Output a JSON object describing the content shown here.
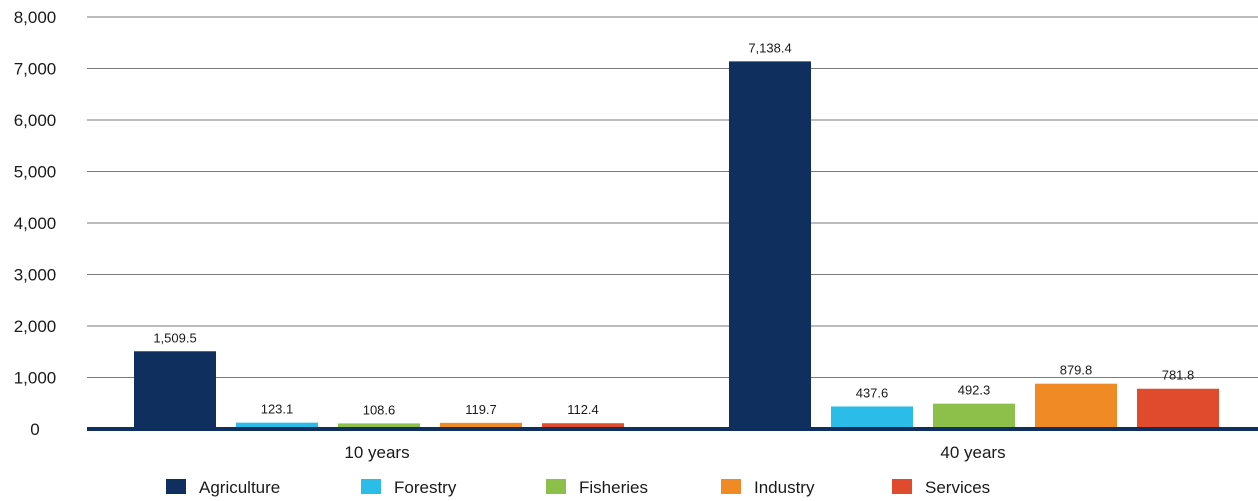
{
  "chart_data": {
    "type": "bar",
    "categories": [
      "10 years",
      "40 years"
    ],
    "series": [
      {
        "name": "Agriculture",
        "color": "#0f2f5e",
        "values": [
          1509.5,
          7138.4
        ],
        "labels": [
          "1,509.5",
          "7,138.4"
        ]
      },
      {
        "name": "Forestry",
        "color": "#2bbde8",
        "values": [
          123.1,
          437.6
        ],
        "labels": [
          "123.1",
          "437.6"
        ]
      },
      {
        "name": "Fisheries",
        "color": "#8cc04b",
        "values": [
          108.6,
          492.3
        ],
        "labels": [
          "108.6",
          "492.3"
        ]
      },
      {
        "name": "Industry",
        "color": "#f08a24",
        "values": [
          119.7,
          879.8
        ],
        "labels": [
          "119.7",
          "879.8"
        ]
      },
      {
        "name": "Services",
        "color": "#e04b2e",
        "values": [
          112.4,
          781.8
        ],
        "labels": [
          "112.4",
          "781.8"
        ]
      }
    ],
    "yticks": [
      "0",
      "1,000",
      "2,000",
      "3,000",
      "4,000",
      "5,000",
      "6,000",
      "7,000",
      "8,000"
    ],
    "ylim": [
      0,
      8000
    ],
    "grid": true,
    "legend": "bottom"
  }
}
